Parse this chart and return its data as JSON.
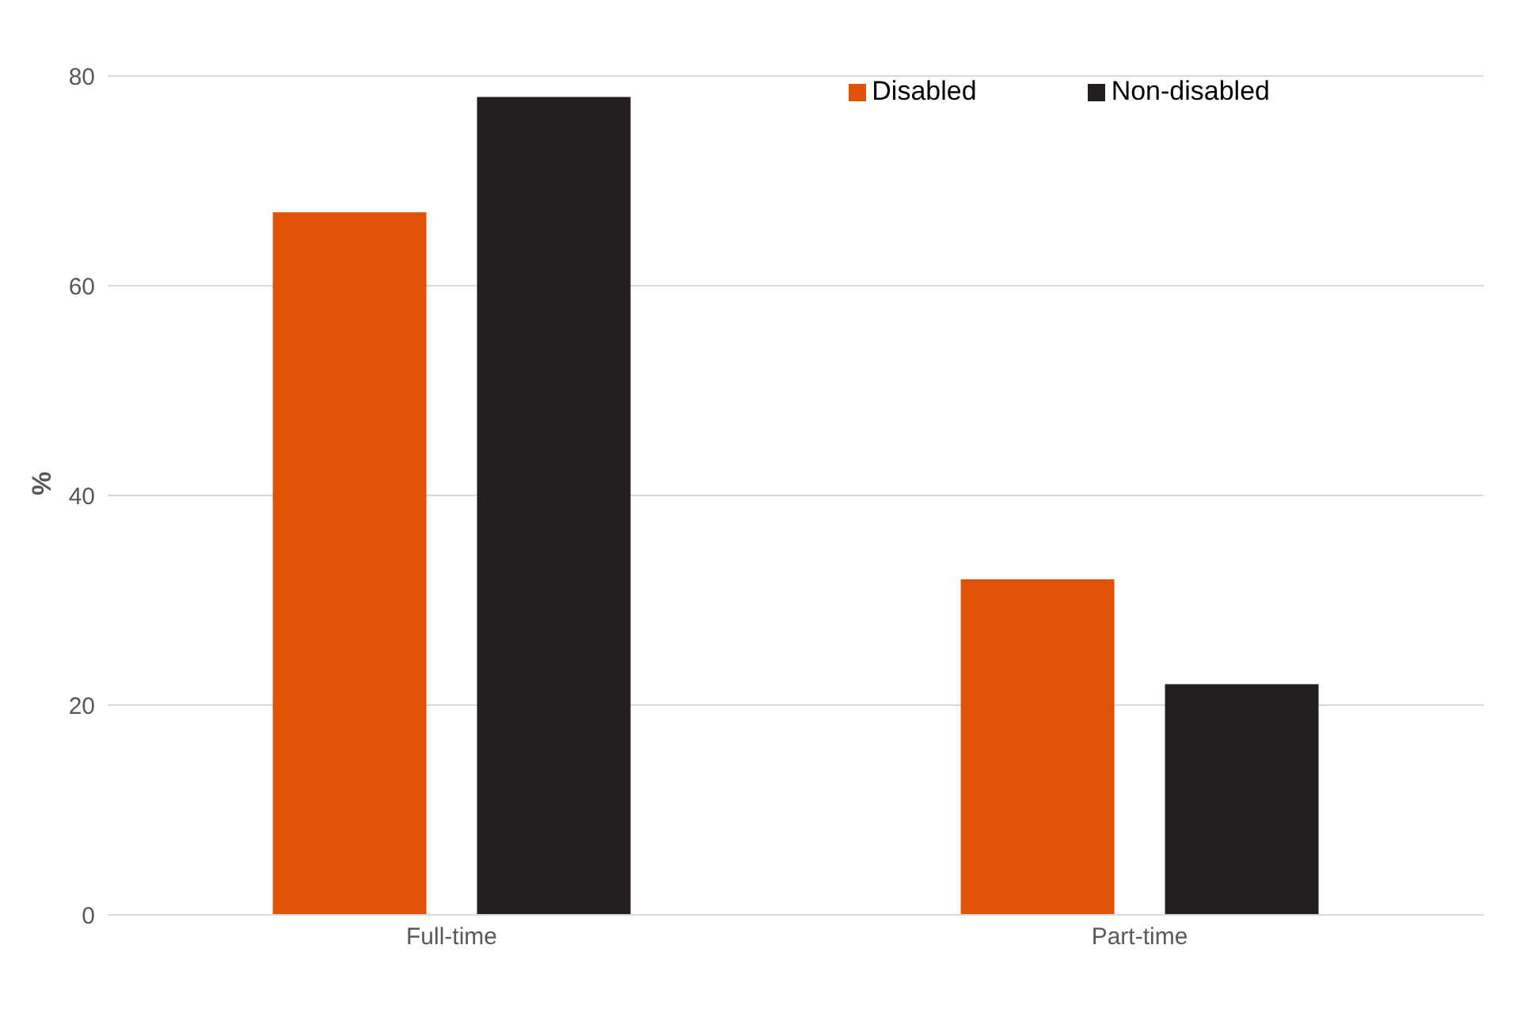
{
  "chart_data": {
    "type": "bar",
    "ylabel": "%",
    "categories": [
      "Full-time",
      "Part-time"
    ],
    "series": [
      {
        "name": "Disabled",
        "color": "#e05206",
        "values": [
          67,
          32
        ]
      },
      {
        "name": "Non-disabled",
        "color": "#231f20",
        "values": [
          78,
          22
        ]
      }
    ],
    "ylim": [
      0,
      80
    ],
    "yticks": [
      0,
      20,
      40,
      60,
      80
    ],
    "grid": "y",
    "legend": "top right"
  }
}
